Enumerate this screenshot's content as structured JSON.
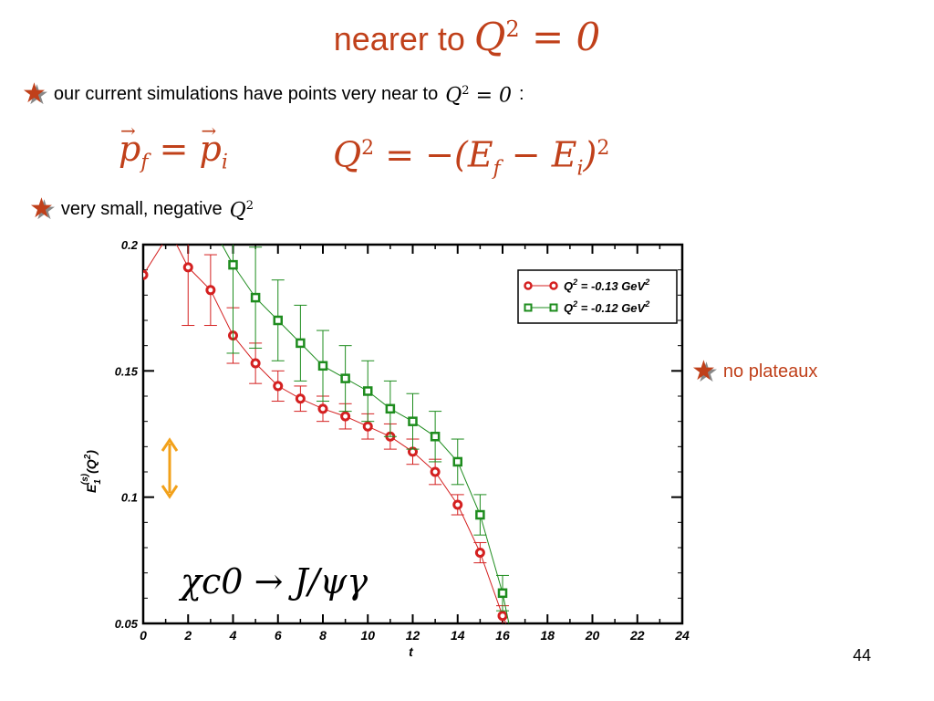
{
  "slide": {
    "title_text": "nearer to",
    "title_math": "Q",
    "title_math_exp": "2",
    "title_math_rhs": "= 0",
    "bullet1_text": "our current simulations have points very near to",
    "bullet1_math": "Q",
    "bullet1_math_exp": "2",
    "bullet1_math_rhs": "= 0",
    "bullet1_tail": ":",
    "eq1_lhs": "p",
    "eq1_lhs_sub": "f",
    "eq1_eq": " = ",
    "eq1_rhs": "p",
    "eq1_rhs_sub": "i",
    "eq2_q": "Q",
    "eq2_exp": "2",
    "eq2_mid": " = −(E",
    "eq2_sub1": "f",
    "eq2_minus": " − E",
    "eq2_sub2": "i",
    "eq2_close": ")",
    "eq2_close_exp": "2",
    "bullet2_text": "very small, negative",
    "bullet2_math": "Q",
    "bullet2_math_exp": "2",
    "bullet3_text": "no plateaux",
    "star_glyph": "★",
    "page_number": "44",
    "accent_color": "#c0401a"
  },
  "chart_data": {
    "type": "scatter",
    "xlabel": "t",
    "ylabel": "E1(s)(Q2)",
    "ylabel_main": "E",
    "ylabel_sub": "1",
    "ylabel_sup": "(s)",
    "ylabel_arg": "(Q",
    "ylabel_arg_sup": "2",
    "ylabel_close": ")",
    "xlim": [
      0,
      24
    ],
    "ylim": [
      0.05,
      0.2
    ],
    "x_ticks": [
      "0",
      "2",
      "4",
      "6",
      "8",
      "10",
      "12",
      "14",
      "16",
      "18",
      "20",
      "22",
      "24"
    ],
    "y_ticks": [
      "0.05",
      "0.1",
      "0.15",
      "0.2"
    ],
    "legend_position": "top-right",
    "annotation": "χc0 → J/ψγ",
    "series": [
      {
        "name": "Q² = -0.13 GeV²",
        "legend_text": "Q",
        "legend_sup": "2",
        "legend_rest": " = -0.13 GeV",
        "legend_sup2": "2",
        "color": "#d42020",
        "marker": "circle",
        "x": [
          0,
          2,
          3,
          4,
          5,
          6,
          7,
          8,
          9,
          10,
          11,
          12,
          13,
          14,
          15,
          16
        ],
        "y": [
          0.188,
          0.191,
          0.182,
          0.164,
          0.153,
          0.144,
          0.139,
          0.135,
          0.132,
          0.128,
          0.124,
          0.118,
          0.11,
          0.097,
          0.078,
          0.053
        ],
        "err": [
          0.0,
          0.023,
          0.014,
          0.011,
          0.008,
          0.006,
          0.005,
          0.005,
          0.005,
          0.005,
          0.005,
          0.005,
          0.005,
          0.004,
          0.004,
          0.004
        ],
        "curve_extra": [
          [
            1.2,
            0.205
          ],
          [
            16.4,
            0.045
          ]
        ]
      },
      {
        "name": "Q² = -0.12 GeV²",
        "legend_text": "Q",
        "legend_sup": "2",
        "legend_rest": " = -0.12 GeV",
        "legend_sup2": "2",
        "color": "#1e8c1e",
        "marker": "square",
        "x": [
          4,
          5,
          6,
          7,
          8,
          9,
          10,
          11,
          12,
          13,
          14,
          15,
          16
        ],
        "y": [
          0.192,
          0.179,
          0.17,
          0.161,
          0.152,
          0.147,
          0.142,
          0.135,
          0.13,
          0.124,
          0.114,
          0.093,
          0.062
        ],
        "err": [
          0.035,
          0.02,
          0.016,
          0.015,
          0.014,
          0.013,
          0.012,
          0.011,
          0.011,
          0.01,
          0.009,
          0.008,
          0.007
        ],
        "curve_extra": [
          [
            3.2,
            0.205
          ],
          [
            16.4,
            0.045
          ]
        ]
      }
    ]
  }
}
